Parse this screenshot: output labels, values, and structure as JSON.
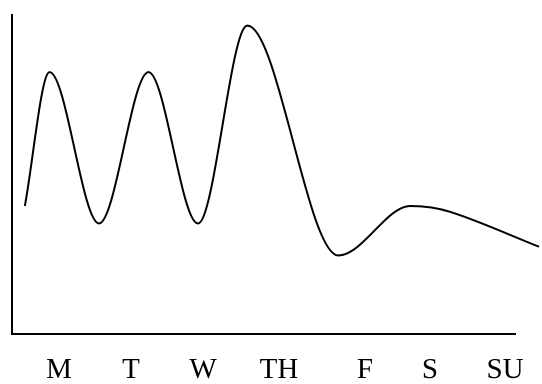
{
  "chart_data": {
    "type": "line",
    "title": "",
    "xlabel": "",
    "ylabel": "",
    "categories": [
      "M",
      "T",
      "W",
      "TH",
      "F",
      "S",
      "SU"
    ],
    "x_ticks": [
      "M",
      "T",
      "W",
      "TH",
      "F",
      "S",
      "SU"
    ],
    "y_ticks": [],
    "series": [
      {
        "name": "",
        "smooth": true,
        "x": [
          0.0,
          0.25,
          0.75,
          1.25,
          1.75,
          2.25,
          3.17,
          3.9,
          4.3,
          5.2
        ],
        "y": [
          1.3,
          3.6,
          1.0,
          3.6,
          1.0,
          4.4,
          0.45,
          1.3,
          1.2,
          0.6
        ]
      }
    ],
    "ylim": [
      -0.9,
      4.6
    ],
    "xlim": [
      -0.13,
      5.23
    ],
    "grid": false,
    "legend": "none",
    "colors": {
      "line": "#000000",
      "axis": "#000000",
      "background": "#ffffff"
    }
  }
}
